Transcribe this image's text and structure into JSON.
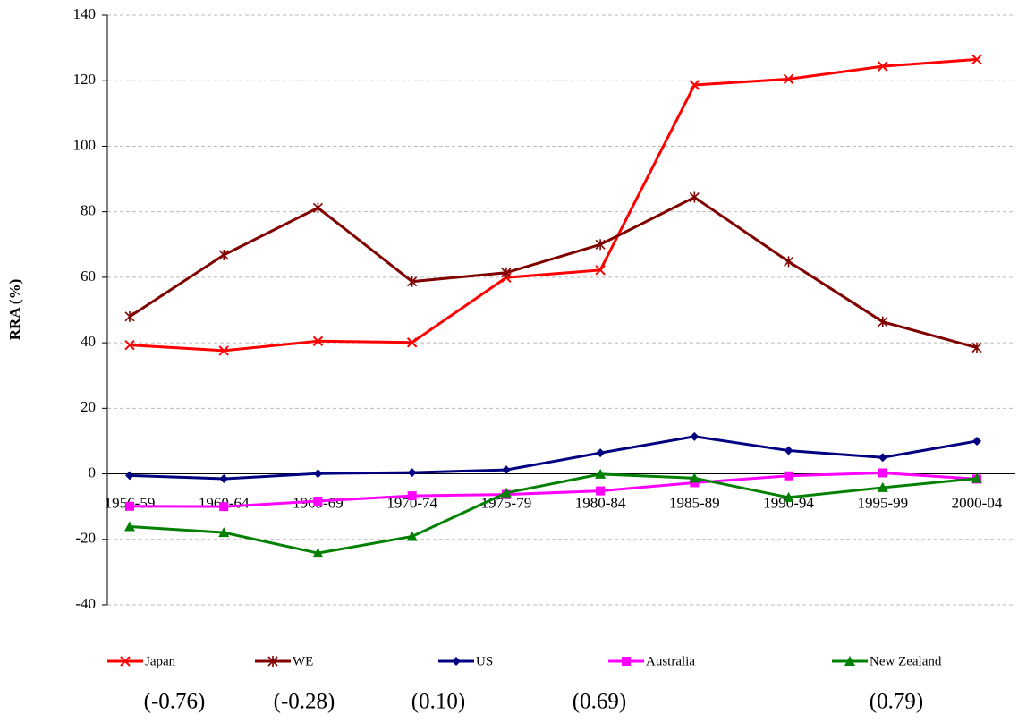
{
  "chart_data": {
    "type": "line",
    "y_label": "RRA (%)",
    "categories": [
      "1956-59",
      "1960-64",
      "1965-69",
      "1970-74",
      "1975-79",
      "1980-84",
      "1985-89",
      "1990-94",
      "1995-99",
      "2000-04"
    ],
    "series": [
      {
        "name": "Japan",
        "color": "#ff0000",
        "marker": "x",
        "values": [
          39.3,
          37.6,
          40.5,
          40.1,
          59.9,
          62.2,
          118.7,
          120.5,
          124.4,
          126.5
        ]
      },
      {
        "name": "WE",
        "color": "#800000",
        "marker": "asterisk",
        "values": [
          48.0,
          66.8,
          81.2,
          58.7,
          61.4,
          70.0,
          84.4,
          64.8,
          46.4,
          38.5
        ]
      },
      {
        "name": "US",
        "color": "#000080",
        "marker": "diamond",
        "values": [
          -0.5,
          -1.5,
          0.1,
          0.4,
          1.2,
          6.4,
          11.4,
          7.1,
          5.0,
          10.0
        ]
      },
      {
        "name": "Australia",
        "color": "#ff00ff",
        "marker": "square",
        "values": [
          -9.9,
          -10.0,
          -8.3,
          -6.7,
          -6.3,
          -5.2,
          -2.7,
          -0.6,
          0.3,
          -1.6
        ]
      },
      {
        "name": "New Zealand",
        "color": "#008000",
        "marker": "triangle",
        "values": [
          -16.1,
          -17.9,
          -24.2,
          -19.1,
          -5.8,
          -0.1,
          -1.3,
          -7.2,
          -4.2,
          -1.4
        ]
      }
    ],
    "ylim": [
      -40,
      140
    ],
    "yticks": [
      -40,
      -20,
      0,
      20,
      40,
      60,
      80,
      100,
      120,
      140
    ],
    "grid": true,
    "legend": "bottom",
    "annotations": [
      "(-0.76)",
      "(-0.28)",
      "(0.10)",
      "(0.69)",
      "(0.79)"
    ]
  }
}
